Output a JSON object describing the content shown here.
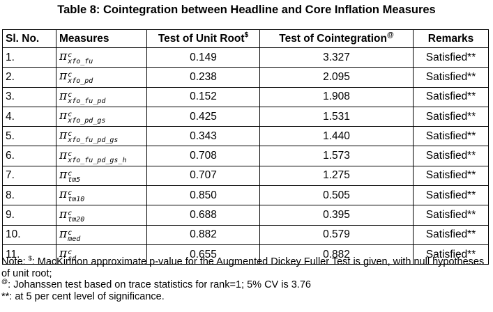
{
  "title": "Table 8: Cointegration between Headline and Core Inflation Measures",
  "headers": {
    "sl": "Sl. No.",
    "measures": "Measures",
    "unit_root": "Test of Unit Root",
    "unit_root_mark": "$",
    "cointegration": "Test of Cointegration",
    "cointegration_mark": "@",
    "remarks": "Remarks"
  },
  "measure_symbol": "π",
  "measure_superscript": "c",
  "rows": [
    {
      "sl": "1.",
      "subscript": "xfo_fu",
      "unit_root": "0.149",
      "cointegration": "3.327",
      "remarks": "Satisfied**"
    },
    {
      "sl": "2.",
      "subscript": "xfo_pd",
      "unit_root": "0.238",
      "cointegration": "2.095",
      "remarks": "Satisfied**"
    },
    {
      "sl": "3.",
      "subscript": "xfo_fu_pd",
      "unit_root": "0.152",
      "cointegration": "1.908",
      "remarks": "Satisfied**"
    },
    {
      "sl": "4.",
      "subscript": "xfo_pd_gs",
      "unit_root": "0.425",
      "cointegration": "1.531",
      "remarks": "Satisfied**"
    },
    {
      "sl": "5.",
      "subscript": "xfo_fu_pd_gs",
      "unit_root": "0.343",
      "cointegration": "1.440",
      "remarks": "Satisfied**"
    },
    {
      "sl": "6.",
      "subscript": "xfo_fu_pd_gs_h",
      "unit_root": "0.708",
      "cointegration": "1.573",
      "remarks": "Satisfied**"
    },
    {
      "sl": "7.",
      "subscript": "tm5",
      "unit_root": "0.707",
      "cointegration": "1.275",
      "remarks": "Satisfied**"
    },
    {
      "sl": "8.",
      "subscript": "tm10",
      "unit_root": "0.850",
      "cointegration": "0.505",
      "remarks": "Satisfied**"
    },
    {
      "sl": "9.",
      "subscript": "tm20",
      "unit_root": "0.688",
      "cointegration": "0.395",
      "remarks": "Satisfied**"
    },
    {
      "sl": "10.",
      "subscript": "med",
      "unit_root": "0.882",
      "cointegration": "0.579",
      "remarks": "Satisfied**"
    },
    {
      "sl": "11.",
      "subscript": "sd",
      "unit_root": "0.655",
      "cointegration": "0.882",
      "remarks": "Satisfied**"
    }
  ],
  "notes": {
    "note1_prefix": "Note: ",
    "note1_mark": "$",
    "note1_text": ": MacKinnon approximate p-value for the Augmented Dickey Fuller Test is given, with null hypotheses of unit root;",
    "note2_mark": "@",
    "note2_text": ": Johanssen test based on trace statistics for rank=1; 5% CV is 3.76",
    "note3_text": "**: at 5 per cent level of significance."
  }
}
